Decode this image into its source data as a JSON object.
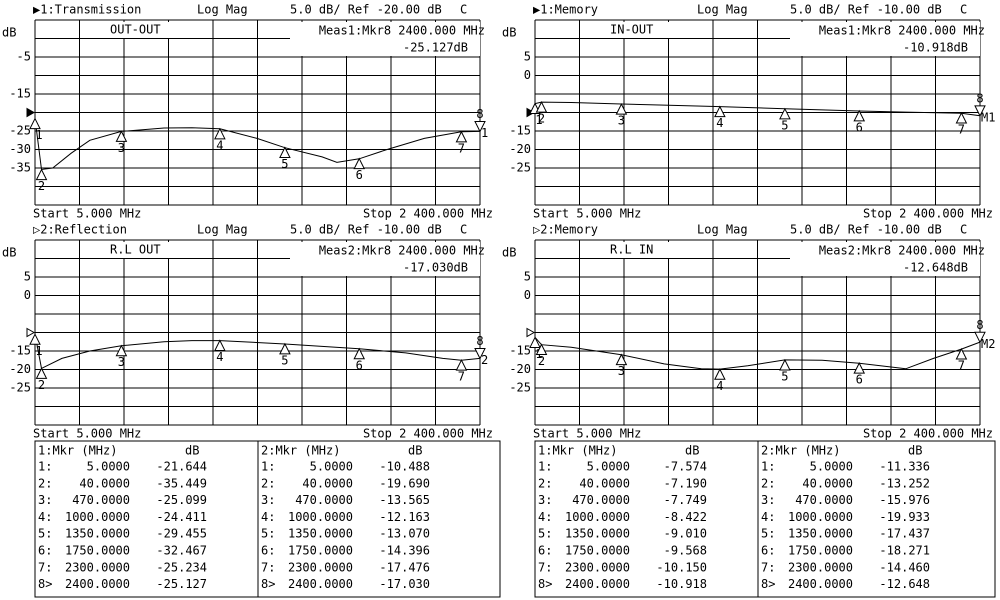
{
  "chart_data": [
    {
      "type": "line",
      "title": "▶1:Transmission",
      "format": "Log Mag",
      "scale": "5.0 dB/ Ref -20.00 dB",
      "flag": "C",
      "ylabel": "dB",
      "trace_name": "OUT-OUT",
      "meas": "Meas1:Mkr8 2400.000 MHz",
      "meas_value": "-25.127dB",
      "start": "Start 5.000 MHz",
      "stop": "Stop 2 400.000 MHz",
      "trace_label": "1",
      "color": "#000000",
      "xlim": [
        5,
        2400
      ],
      "ylim": [
        -45,
        5
      ],
      "yticks": [
        -5,
        -15,
        -25,
        -30,
        -35
      ],
      "trace": {
        "x": [
          5,
          40,
          100,
          200,
          300,
          470,
          700,
          850,
          1000,
          1200,
          1350,
          1550,
          1630,
          1750,
          1900,
          2100,
          2300,
          2400
        ],
        "values": [
          -21.6,
          -35.4,
          -35,
          -31,
          -27.5,
          -25.1,
          -24.2,
          -24.1,
          -24.4,
          -27,
          -29.5,
          -32,
          -33.5,
          -32.5,
          -30,
          -27,
          -25.2,
          -25.1
        ]
      },
      "markers": {
        "labels": [
          "1",
          "2",
          "3",
          "4",
          "5",
          "6",
          "7",
          "8"
        ],
        "x": [
          5,
          40,
          470,
          1000,
          1350,
          1750,
          2300,
          2400
        ],
        "values": [
          -21.644,
          -35.449,
          -25.099,
          -24.411,
          -29.455,
          -32.467,
          -25.234,
          -25.127
        ]
      }
    },
    {
      "type": "line",
      "title": "▶1:Memory",
      "format": "Log Mag",
      "scale": "5.0 dB/ Ref -10.00 dB",
      "flag": "C",
      "ylabel": "dB",
      "trace_name": "IN-OUT",
      "meas": "Meas1:Mkr8 2400.000 MHz",
      "meas_value": "-10.918dB",
      "start": "Start 5.000 MHz",
      "stop": "Stop 2 400.000 MHz",
      "trace_label": "M1",
      "color": "#000000",
      "xlim": [
        5,
        2400
      ],
      "ylim": [
        -35,
        15
      ],
      "yticks": [
        5,
        0,
        -15,
        -20,
        -25
      ],
      "trace": {
        "x": [
          5,
          40,
          200,
          470,
          700,
          1000,
          1350,
          1750,
          2000,
          2300,
          2400
        ],
        "values": [
          -7.6,
          -7.2,
          -7.3,
          -7.7,
          -8,
          -8.4,
          -9,
          -9.6,
          -9.9,
          -10.2,
          -10.9
        ]
      },
      "markers": {
        "labels": [
          "1",
          "2",
          "3",
          "4",
          "5",
          "6",
          "7",
          "8"
        ],
        "x": [
          5,
          40,
          470,
          1000,
          1350,
          1750,
          2300,
          2400
        ],
        "values": [
          -7.574,
          -7.19,
          -7.749,
          -8.422,
          -9.01,
          -9.568,
          -10.15,
          -10.918
        ]
      }
    },
    {
      "type": "line",
      "title": "▷2:Reflection",
      "format": "Log Mag",
      "scale": "5.0 dB/ Ref -10.00 dB",
      "flag": "C",
      "ylabel": "dB",
      "trace_name": "R.L OUT",
      "meas": "Meas2:Mkr8 2400.000 MHz",
      "meas_value": "-17.030dB",
      "start": "Start 5.000 MHz",
      "stop": "Stop 2 400.000 MHz",
      "trace_label": "2",
      "color": "#000000",
      "xlim": [
        5,
        2400
      ],
      "ylim": [
        -35,
        15
      ],
      "yticks": [
        5,
        0,
        -15,
        -20,
        -25
      ],
      "trace": {
        "x": [
          5,
          40,
          150,
          300,
          470,
          700,
          850,
          1000,
          1350,
          1750,
          2000,
          2200,
          2300,
          2400
        ],
        "values": [
          -10.5,
          -19.7,
          -17,
          -15,
          -13.6,
          -12.5,
          -12.2,
          -12.2,
          -13.1,
          -14.4,
          -15.5,
          -17,
          -17.5,
          -17
        ]
      },
      "markers": {
        "labels": [
          "1",
          "2",
          "3",
          "4",
          "5",
          "6",
          "7",
          "8"
        ],
        "x": [
          5,
          40,
          470,
          1000,
          1350,
          1750,
          2300,
          2400
        ],
        "values": [
          -10.488,
          -19.69,
          -13.565,
          -12.163,
          -13.07,
          -14.396,
          -17.476,
          -17.03
        ]
      }
    },
    {
      "type": "line",
      "title": "▷2:Memory",
      "format": "Log Mag",
      "scale": "5.0 dB/ Ref -10.00 dB",
      "flag": "C",
      "ylabel": "dB",
      "trace_name": "R.L IN",
      "meas": "Meas2:Mkr8 2400.000 MHz",
      "meas_value": "-12.648dB",
      "start": "Start 5.000 MHz",
      "stop": "Stop 2 400.000 MHz",
      "trace_label": "M2",
      "color": "#000000",
      "xlim": [
        5,
        2400
      ],
      "ylim": [
        -35,
        15
      ],
      "yticks": [
        5,
        0,
        -15,
        -20,
        -25
      ],
      "trace": {
        "x": [
          5,
          40,
          200,
          470,
          700,
          900,
          1000,
          1150,
          1350,
          1550,
          1750,
          2000,
          2150,
          2300,
          2400
        ],
        "values": [
          -11.3,
          -13.3,
          -14,
          -16,
          -18.5,
          -19.8,
          -19.9,
          -19,
          -17.4,
          -17.5,
          -18.3,
          -19.8,
          -17,
          -14.5,
          -12.6
        ]
      },
      "markers": {
        "labels": [
          "1",
          "2",
          "3",
          "4",
          "5",
          "6",
          "7",
          "8"
        ],
        "x": [
          5,
          40,
          470,
          1000,
          1350,
          1750,
          2300,
          2400
        ],
        "values": [
          -11.336,
          -13.252,
          -15.976,
          -19.933,
          -17.437,
          -18.271,
          -14.46,
          -12.648
        ]
      }
    }
  ],
  "tables": [
    {
      "columns": [
        {
          "headers": [
            "1:Mkr (MHz)",
            "dB"
          ],
          "rows": [
            [
              "1:",
              "5.0000",
              "-21.644"
            ],
            [
              "2:",
              "40.0000",
              "-35.449"
            ],
            [
              "3:",
              "470.0000",
              "-25.099"
            ],
            [
              "4:",
              "1000.0000",
              "-24.411"
            ],
            [
              "5:",
              "1350.0000",
              "-29.455"
            ],
            [
              "6:",
              "1750.0000",
              "-32.467"
            ],
            [
              "7:",
              "2300.0000",
              "-25.234"
            ],
            [
              "8>",
              "2400.0000",
              "-25.127"
            ]
          ]
        },
        {
          "headers": [
            "2:Mkr (MHz)",
            "dB"
          ],
          "rows": [
            [
              "1:",
              "5.0000",
              "-10.488"
            ],
            [
              "2:",
              "40.0000",
              "-19.690"
            ],
            [
              "3:",
              "470.0000",
              "-13.565"
            ],
            [
              "4:",
              "1000.0000",
              "-12.163"
            ],
            [
              "5:",
              "1350.0000",
              "-13.070"
            ],
            [
              "6:",
              "1750.0000",
              "-14.396"
            ],
            [
              "7:",
              "2300.0000",
              "-17.476"
            ],
            [
              "8>",
              "2400.0000",
              "-17.030"
            ]
          ]
        }
      ]
    },
    {
      "columns": [
        {
          "headers": [
            "1:Mkr (MHz)",
            "dB"
          ],
          "rows": [
            [
              "1:",
              "5.0000",
              "-7.574"
            ],
            [
              "2:",
              "40.0000",
              "-7.190"
            ],
            [
              "3:",
              "470.0000",
              "-7.749"
            ],
            [
              "4:",
              "1000.0000",
              "-8.422"
            ],
            [
              "5:",
              "1350.0000",
              "-9.010"
            ],
            [
              "6:",
              "1750.0000",
              "-9.568"
            ],
            [
              "7:",
              "2300.0000",
              "-10.150"
            ],
            [
              "8>",
              "2400.0000",
              "-10.918"
            ]
          ]
        },
        {
          "headers": [
            "2:Mkr (MHz)",
            "dB"
          ],
          "rows": [
            [
              "1:",
              "5.0000",
              "-11.336"
            ],
            [
              "2:",
              "40.0000",
              "-13.252"
            ],
            [
              "3:",
              "470.0000",
              "-15.976"
            ],
            [
              "4:",
              "1000.0000",
              "-19.933"
            ],
            [
              "5:",
              "1350.0000",
              "-17.437"
            ],
            [
              "6:",
              "1750.0000",
              "-18.271"
            ],
            [
              "7:",
              "2300.0000",
              "-14.460"
            ],
            [
              "8>",
              "2400.0000",
              "-12.648"
            ]
          ]
        }
      ]
    }
  ]
}
